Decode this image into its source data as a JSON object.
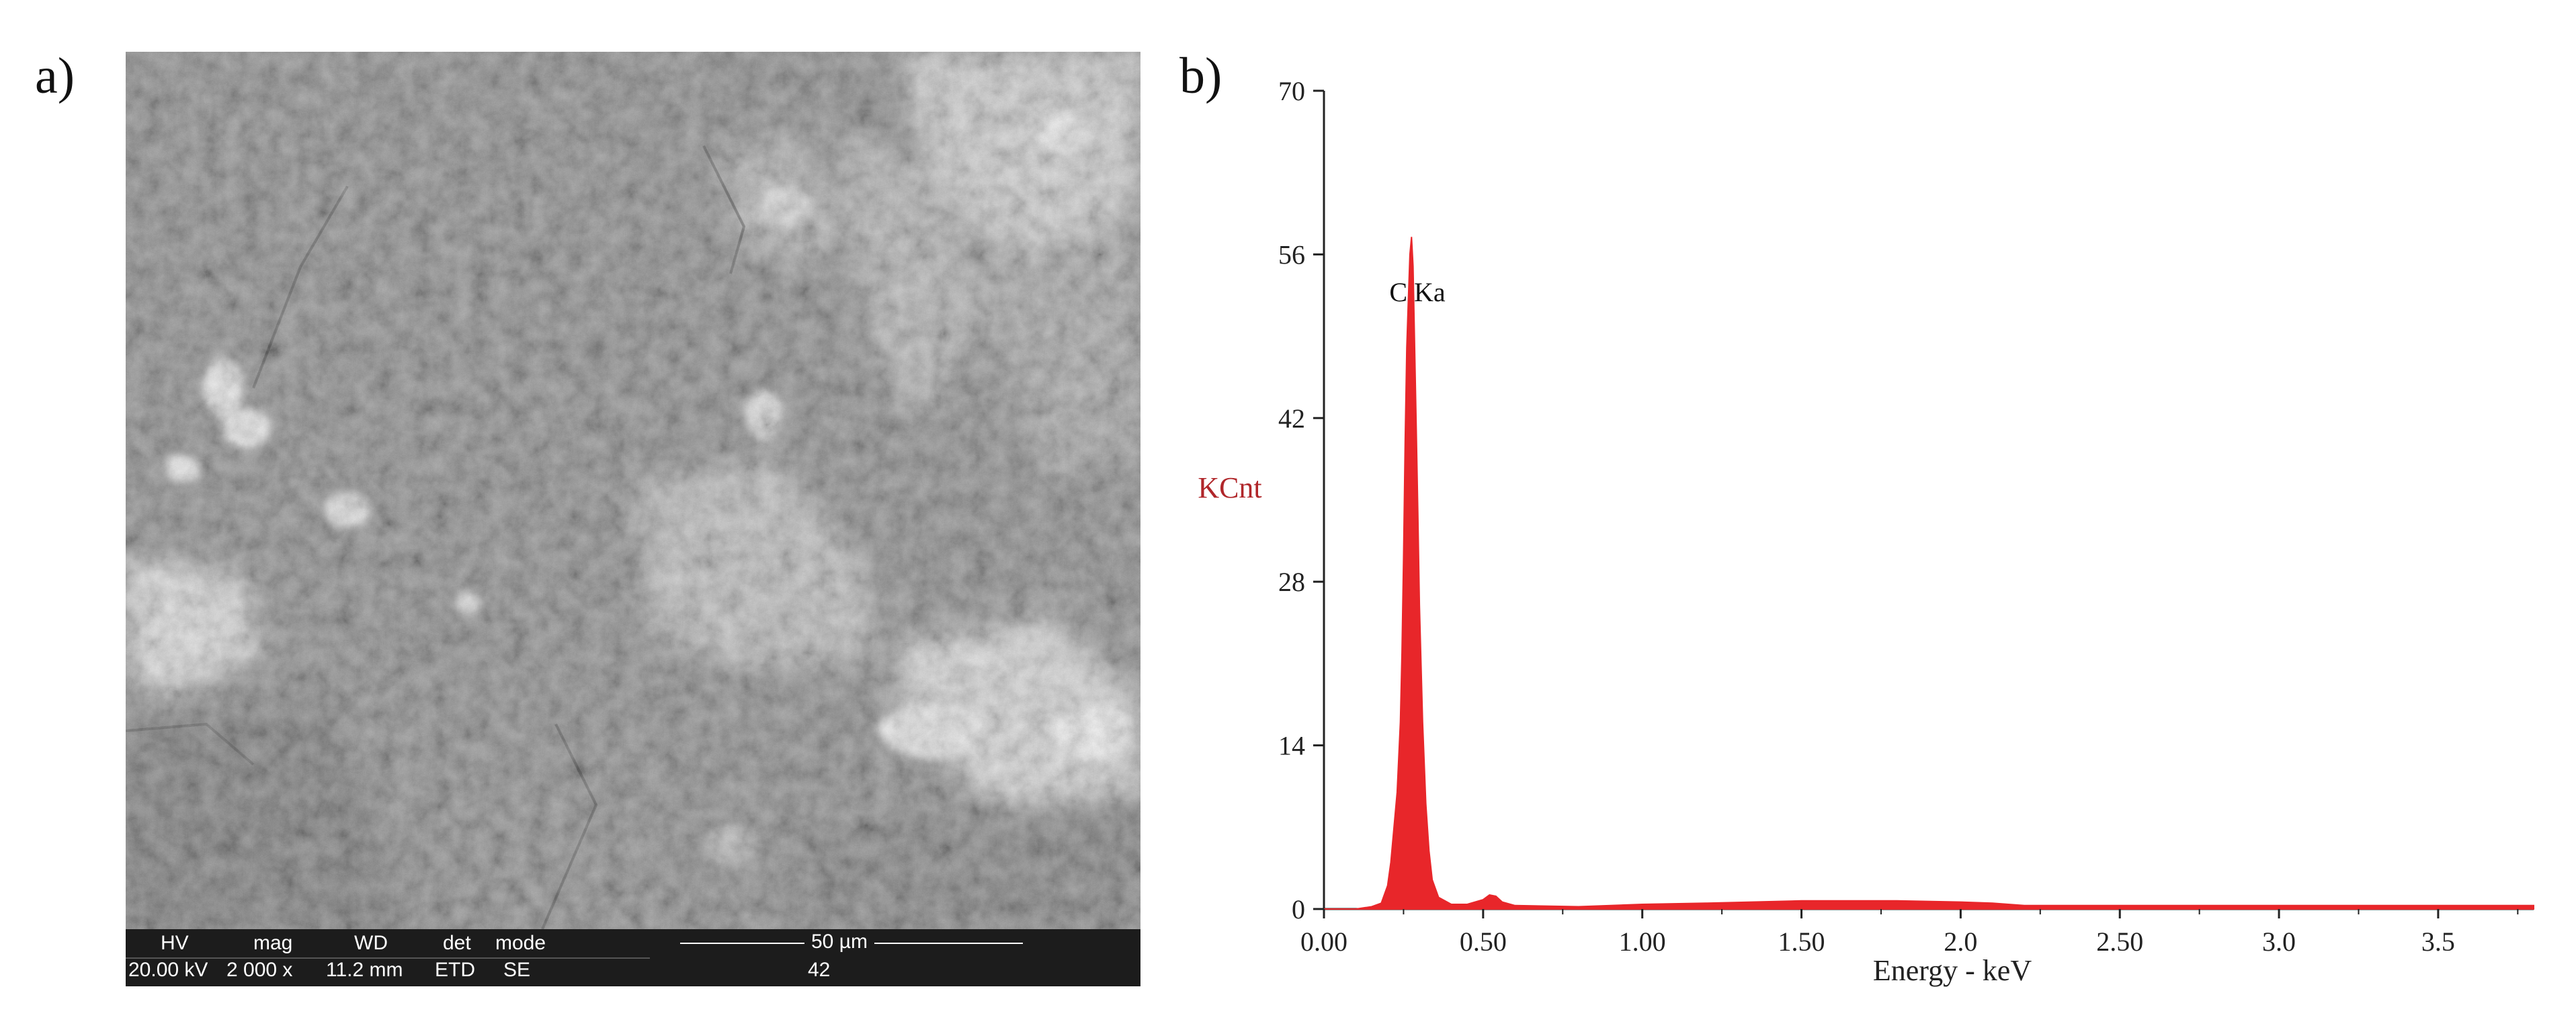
{
  "panel_labels": {
    "a": "a)",
    "b": "b)"
  },
  "sem": {
    "headers": [
      "HV",
      "mag",
      "WD",
      "det",
      "mode"
    ],
    "values": [
      "20.00 kV",
      "2 000 x",
      "11.2 mm",
      "ETD",
      "SE"
    ],
    "scale_bar": "50 µm",
    "frame_number": "42"
  },
  "chart_data": {
    "type": "area",
    "title": "",
    "xlabel": "Energy - keV",
    "ylabel": "KCnt",
    "xlim": [
      0.0,
      3.8
    ],
    "ylim": [
      0,
      70
    ],
    "y_ticks": [
      0,
      14,
      28,
      42,
      56,
      70
    ],
    "y_tick_labels": [
      "0",
      "14",
      "28",
      "42",
      "56",
      "70"
    ],
    "x_ticks": [
      0.0,
      0.5,
      1.0,
      1.5,
      2.0,
      2.5,
      3.0,
      3.5
    ],
    "x_tick_labels": [
      "0.00",
      "0.50",
      "1.00",
      "1.50",
      "2.0",
      "2.50",
      "3.0",
      "3.5"
    ],
    "grid": false,
    "series": [
      {
        "color": "#e8262a",
        "x": [
          0.0,
          0.1,
          0.15,
          0.18,
          0.2,
          0.21,
          0.22,
          0.23,
          0.24,
          0.245,
          0.25,
          0.255,
          0.26,
          0.265,
          0.27,
          0.275,
          0.28,
          0.285,
          0.29,
          0.295,
          0.3,
          0.31,
          0.32,
          0.33,
          0.34,
          0.36,
          0.4,
          0.45,
          0.5,
          0.52,
          0.54,
          0.56,
          0.6,
          0.8,
          1.0,
          1.2,
          1.5,
          1.8,
          2.0,
          2.1,
          2.2,
          2.5,
          3.0,
          3.5,
          3.8
        ],
        "y": [
          0,
          0,
          0.2,
          0.5,
          2,
          4,
          7,
          10,
          16,
          22,
          30,
          40,
          48,
          52,
          56,
          57.5,
          55,
          48,
          41,
          34,
          26,
          16,
          9,
          5,
          2.5,
          1,
          0.4,
          0.4,
          0.8,
          1.2,
          1.1,
          0.6,
          0.3,
          0.2,
          0.4,
          0.5,
          0.7,
          0.7,
          0.6,
          0.5,
          0.3,
          0.3,
          0.3,
          0.3,
          0.3
        ]
      }
    ],
    "annotations": [
      {
        "text": "C Ka",
        "x": 0.29,
        "y": 52
      }
    ],
    "colors": {
      "spectrum": "#e8262a",
      "ylabel": "#b0262a",
      "axis": "#222222"
    }
  }
}
